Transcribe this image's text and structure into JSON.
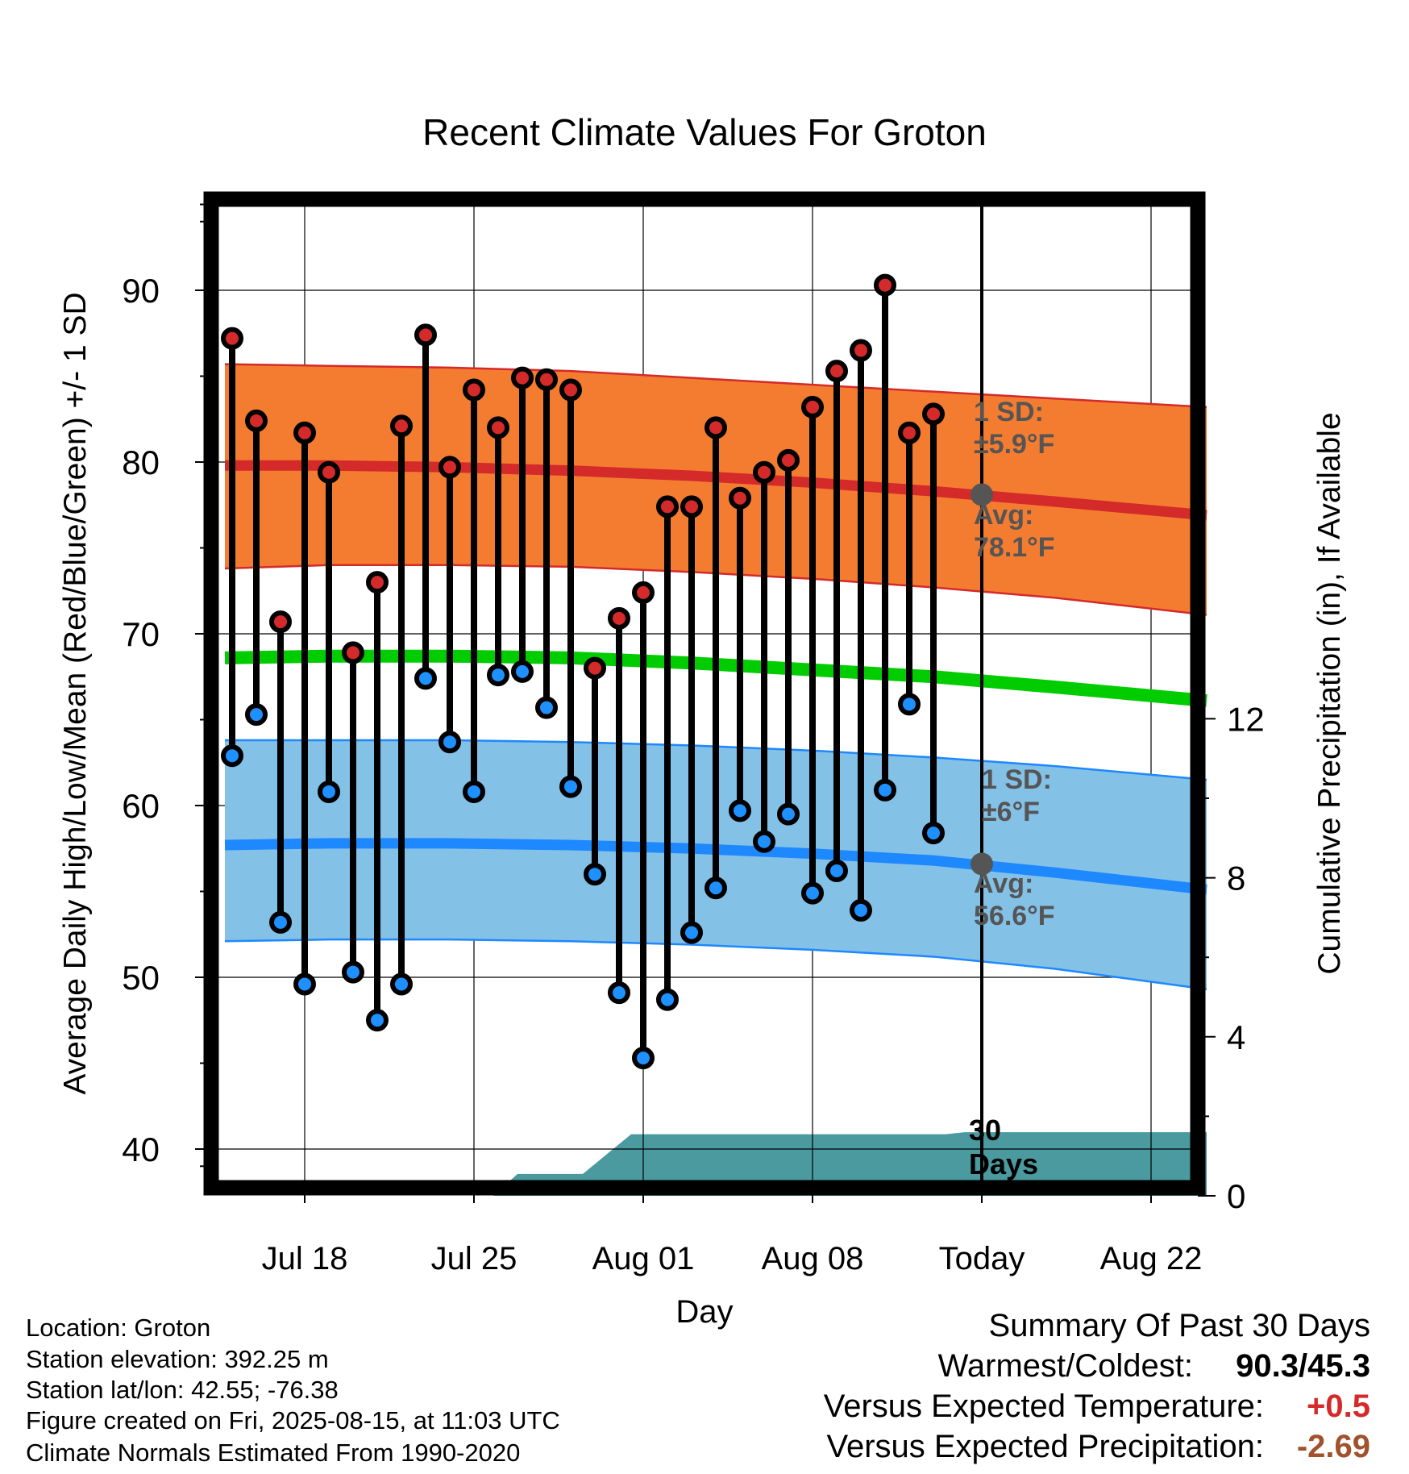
{
  "chart_data": {
    "type": "line",
    "title": "Recent Climate Values For Groton",
    "xlabel": "Day",
    "ylabel": "Average Daily High/Low/Mean (Red/Blue/Green) +/- 1 SD",
    "y2label": "Cumulative Precipitation (in), If Available",
    "ylim": [
      37.7,
      94
    ],
    "y_ticks": [
      "40",
      "50",
      "60",
      "70",
      "80",
      "90"
    ],
    "y2lim": [
      0,
      22.5
    ],
    "y2_ticks": [
      "0",
      "4",
      "8",
      "12"
    ],
    "x_ticks": [
      {
        "day": 4,
        "label": "Jul 18"
      },
      {
        "day": 11,
        "label": "Jul 25"
      },
      {
        "day": 18,
        "label": "Aug 01"
      },
      {
        "day": 25,
        "label": "Aug 08"
      },
      {
        "day": 32,
        "label": "Today"
      },
      {
        "day": 39,
        "label": "Aug 22"
      }
    ],
    "x_range": [
      0.7,
      41.3
    ],
    "today_day": 32,
    "grid": true,
    "highs": [
      87.2,
      82.4,
      70.7,
      81.7,
      79.4,
      68.9,
      73.0,
      82.1,
      87.4,
      79.7,
      84.2,
      82.0,
      84.9,
      84.8,
      84.2,
      68.0,
      70.9,
      72.4,
      77.4,
      77.4,
      82.0,
      77.9,
      79.4,
      80.1,
      83.2,
      85.3,
      86.5,
      90.3,
      81.7,
      82.8
    ],
    "lows": [
      62.9,
      65.3,
      53.2,
      49.6,
      60.8,
      50.3,
      47.5,
      49.6,
      67.4,
      63.7,
      60.8,
      67.6,
      67.8,
      65.7,
      61.1,
      56.0,
      49.1,
      45.3,
      48.7,
      52.6,
      55.2,
      59.7,
      57.9,
      59.5,
      54.9,
      56.2,
      53.9,
      60.9,
      65.9,
      58.4
    ],
    "normals": {
      "days": [
        0.7,
        5,
        10,
        15,
        20,
        25,
        30,
        35,
        41.3
      ],
      "high_avg": [
        79.8,
        79.8,
        79.7,
        79.5,
        79.2,
        78.8,
        78.3,
        77.7,
        76.9
      ],
      "high_sd_upper": [
        85.7,
        85.6,
        85.5,
        85.3,
        84.9,
        84.5,
        84.1,
        83.7,
        83.2
      ],
      "high_sd_lower": [
        73.8,
        74.0,
        74.0,
        73.9,
        73.6,
        73.2,
        72.7,
        72.1,
        71.1
      ],
      "mean": [
        68.6,
        68.7,
        68.7,
        68.6,
        68.3,
        67.9,
        67.5,
        66.9,
        66.1
      ],
      "low_avg": [
        57.7,
        57.8,
        57.8,
        57.7,
        57.5,
        57.2,
        56.8,
        56.1,
        55.1
      ],
      "low_sd_upper": [
        63.8,
        63.8,
        63.8,
        63.7,
        63.5,
        63.2,
        62.8,
        62.3,
        61.5
      ],
      "low_sd_lower": [
        52.1,
        52.2,
        52.2,
        52.1,
        51.9,
        51.6,
        51.2,
        50.5,
        49.3
      ]
    },
    "precip_cumulative": {
      "days": [
        0.7,
        11.8,
        12.8,
        14.0,
        15.5,
        17.5,
        18.5,
        24.0,
        30.5,
        31.3,
        41.3
      ],
      "values": [
        0,
        0,
        0.55,
        0.55,
        0.55,
        1.55,
        1.55,
        1.55,
        1.55,
        1.6,
        1.6
      ]
    },
    "annotations": {
      "high_sd_label": "1 SD:",
      "high_sd_value": "±5.9°F",
      "high_avg_label": "Avg:",
      "high_avg_value": "78.1°F",
      "low_sd_label": "1 SD:",
      "low_sd_value": "±6°F",
      "low_avg_label": "Avg:",
      "low_avg_value": "56.6°F",
      "days_label_1": "30",
      "days_label_2": "Days",
      "today_high_avg": 78.1,
      "today_low_avg": 56.6
    },
    "colors": {
      "high_band": "#f47c30",
      "high_line": "#d42a2a",
      "mean_line": "#00cc00",
      "low_band": "#84c1e7",
      "low_line": "#1e88ff",
      "precip": "#4a9aa0",
      "high_dot": "#d42a2a",
      "low_dot": "#1e90ff",
      "annotation": "#555555"
    }
  },
  "footer": {
    "location": "Location: Groton",
    "elevation": "Station elevation: 392.25 m",
    "latlon": "Station lat/lon: 42.55; -76.38",
    "created": "Figure created on Fri, 2025-08-15, at 11:03 UTC",
    "normals": "Climate Normals Estimated From 1990-2020"
  },
  "summary": {
    "title": "Summary Of Past 30 Days",
    "warm_cold_label": "Warmest/Coldest:",
    "warm_cold_value": "90.3/45.3",
    "temp_label": "Versus Expected Temperature:",
    "temp_value": "+0.5",
    "temp_color": "#d42a2a",
    "precip_label": "Versus Expected Precipitation:",
    "precip_value": "-2.69",
    "precip_color": "#a0522d"
  }
}
